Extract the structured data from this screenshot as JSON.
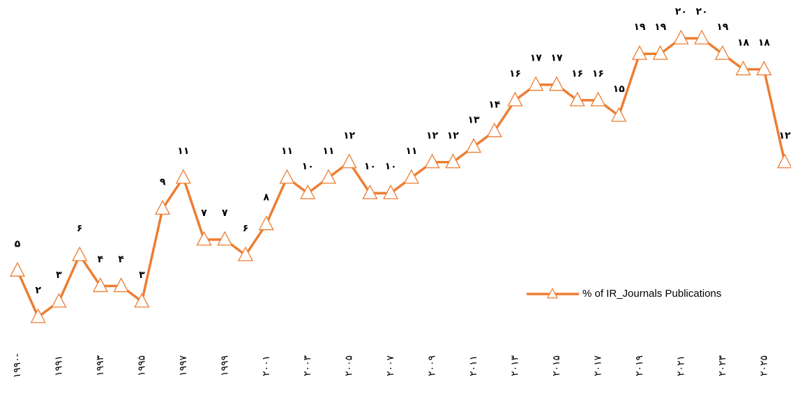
{
  "chart_data": {
    "type": "line",
    "categories": [
      "۱۹۹۰-",
      null,
      "۱۹۹۱",
      null,
      "۱۹۹۳",
      null,
      "۱۹۹۵",
      null,
      "۱۹۹۷",
      null,
      "۱۹۹۹",
      null,
      "۲۰۰۱",
      null,
      "۲۰۰۳",
      null,
      "۲۰۰۵",
      null,
      "۲۰۰۷",
      null,
      "۲۰۰۹",
      null,
      "۲۰۱۱",
      null,
      "۲۰۱۳",
      null,
      "۲۰۱۵",
      null,
      "۲۰۱۷",
      null,
      "۲۰۱۹",
      null,
      "۲۰۲۱",
      null,
      "۲۰۲۳",
      null,
      "۲۰۲۵",
      null
    ],
    "series": [
      {
        "name": "% of IR_Journals Publications",
        "color": "#ED7D31",
        "values": [
          5,
          2,
          3,
          6,
          4,
          4,
          3,
          9,
          11,
          7,
          7,
          6,
          8,
          11,
          10,
          11,
          12,
          10,
          10,
          11,
          12,
          12,
          13,
          14,
          16,
          17,
          17,
          16,
          16,
          15,
          19,
          19,
          20,
          20,
          19,
          18,
          18,
          12
        ],
        "value_labels": [
          "۵",
          "۲",
          "۳",
          "۶",
          "۴",
          "۴",
          "۳",
          "۹",
          "۱۱",
          "۷",
          "۷",
          "۶",
          "۸",
          "۱۱",
          "۱۰",
          "۱۱",
          "۱۲",
          "۱۰",
          "۱۰",
          "۱۱",
          "۱۲",
          "۱۲",
          "۱۳",
          "۱۴",
          "۱۶",
          "۱۷",
          "۱۷",
          "۱۶",
          "۱۶",
          "۱۵",
          "۱۹",
          "۱۹",
          "۲۰",
          "۲۰",
          "۱۹",
          "۱۸",
          "۱۸",
          "۱۲"
        ]
      }
    ],
    "legend": "right"
  }
}
